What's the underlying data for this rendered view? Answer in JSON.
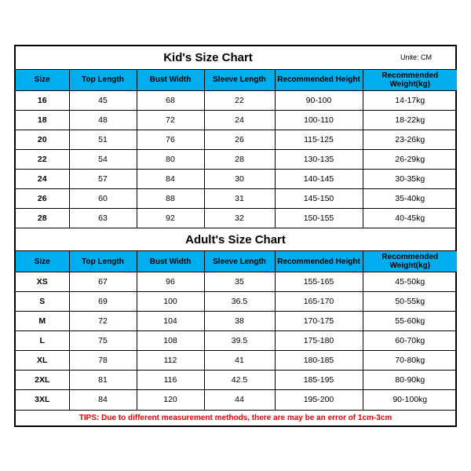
{
  "kids": {
    "title": "Kid's Size Chart",
    "unit": "Unite: CM",
    "columns": [
      "Size",
      "Top Length",
      "Bust Width",
      "Sleeve Length",
      "Recommended Height",
      "Recommended Weight(kg)"
    ],
    "rows": [
      [
        "16",
        "45",
        "68",
        "22",
        "90-100",
        "14-17kg"
      ],
      [
        "18",
        "48",
        "72",
        "24",
        "100-110",
        "18-22kg"
      ],
      [
        "20",
        "51",
        "76",
        "26",
        "115-125",
        "23-26kg"
      ],
      [
        "22",
        "54",
        "80",
        "28",
        "130-135",
        "26-29kg"
      ],
      [
        "24",
        "57",
        "84",
        "30",
        "140-145",
        "30-35kg"
      ],
      [
        "26",
        "60",
        "88",
        "31",
        "145-150",
        "35-40kg"
      ],
      [
        "28",
        "63",
        "92",
        "32",
        "150-155",
        "40-45kg"
      ]
    ]
  },
  "adults": {
    "title": "Adult's Size Chart",
    "columns": [
      "Size",
      "Top Length",
      "Bust Width",
      "Sleeve Length",
      "Recommended Height",
      "Recommended Weight(kg)"
    ],
    "rows": [
      [
        "XS",
        "67",
        "96",
        "35",
        "155-165",
        "45-50kg"
      ],
      [
        "S",
        "69",
        "100",
        "36.5",
        "165-170",
        "50-55kg"
      ],
      [
        "M",
        "72",
        "104",
        "38",
        "170-175",
        "55-60kg"
      ],
      [
        "L",
        "75",
        "108",
        "39.5",
        "175-180",
        "60-70kg"
      ],
      [
        "XL",
        "78",
        "112",
        "41",
        "180-185",
        "70-80kg"
      ],
      [
        "2XL",
        "81",
        "116",
        "42.5",
        "185-195",
        "80-90kg"
      ],
      [
        "3XL",
        "84",
        "120",
        "44",
        "195-200",
        "90-100kg"
      ]
    ]
  },
  "tips": "TIPS: Due to different measurement methods, there are may be an error of 1cm-3cm"
}
